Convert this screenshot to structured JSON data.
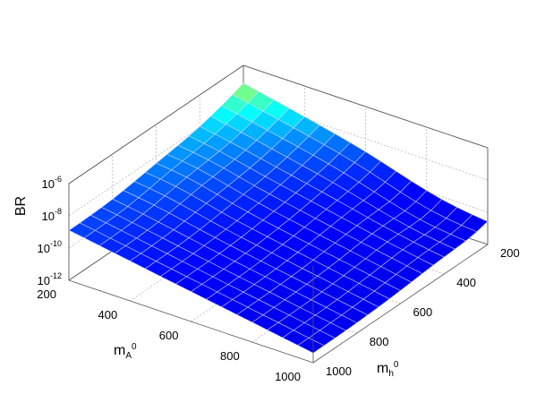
{
  "chart_data": {
    "type": "surface",
    "title": "",
    "xlabel": {
      "main": "m",
      "sub": "A",
      "sup": "0"
    },
    "ylabel": {
      "main": "m",
      "sub": "h",
      "sup": "0"
    },
    "zlabel": "BR",
    "x_ticks": [
      "200",
      "400",
      "600",
      "800",
      "1000"
    ],
    "y_ticks": [
      "200",
      "400",
      "600",
      "800",
      "1000"
    ],
    "z_ticks": [
      {
        "base": "10",
        "exp": "-6"
      },
      {
        "base": "10",
        "exp": "-8"
      },
      {
        "base": "10",
        "exp": "-10"
      },
      {
        "base": "10",
        "exp": "-12"
      }
    ],
    "xlim": [
      200,
      1000
    ],
    "ylim": [
      200,
      1000
    ],
    "zlim_log10": [
      -12,
      -6
    ],
    "zscale": "log",
    "grid": true,
    "colormap": "jet",
    "x": [
      200,
      250,
      300,
      350,
      400,
      450,
      500,
      550,
      600,
      650,
      700,
      750,
      800,
      850,
      900,
      950,
      1000
    ],
    "y": [
      200,
      250,
      300,
      350,
      400,
      450,
      500,
      550,
      600,
      650,
      700,
      750,
      800,
      850,
      900,
      950,
      1000
    ],
    "z_log10_note_units": "log10(BR)"
  }
}
